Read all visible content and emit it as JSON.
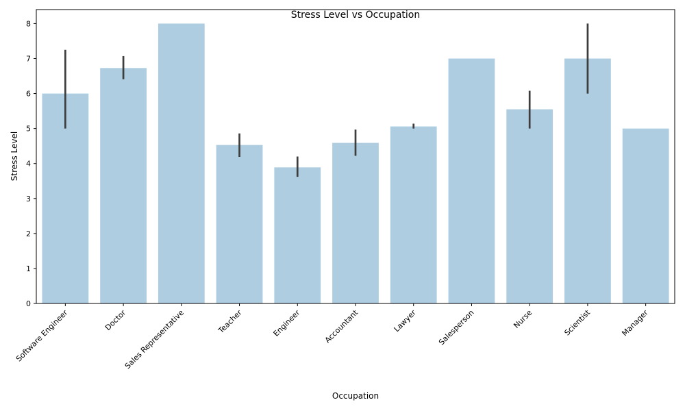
{
  "chart_data": {
    "type": "bar",
    "title": "Stress Level vs Occupation",
    "xlabel": "Occupation",
    "ylabel": "Stress Level",
    "ylim": [
      0,
      8.4
    ],
    "yticks": [
      0,
      1,
      2,
      3,
      4,
      5,
      6,
      7,
      8
    ],
    "categories": [
      "Software Engineer",
      "Doctor",
      "Sales Representative",
      "Teacher",
      "Engineer",
      "Accountant",
      "Lawyer",
      "Salesperson",
      "Nurse",
      "Scientist",
      "Manager"
    ],
    "values": [
      6.0,
      6.73,
      8.0,
      4.53,
      3.89,
      4.59,
      5.06,
      7.0,
      5.55,
      7.0,
      5.0
    ],
    "error_low": [
      5.0,
      6.41,
      8.0,
      4.19,
      3.62,
      4.22,
      5.0,
      7.0,
      5.0,
      6.0,
      5.0
    ],
    "error_high": [
      7.25,
      7.07,
      8.0,
      4.86,
      4.2,
      4.97,
      5.14,
      7.0,
      6.08,
      8.0,
      5.0
    ],
    "grid": false,
    "legend": "none",
    "bar_color": "#aecde0",
    "error_color": "#3d3d3d"
  }
}
